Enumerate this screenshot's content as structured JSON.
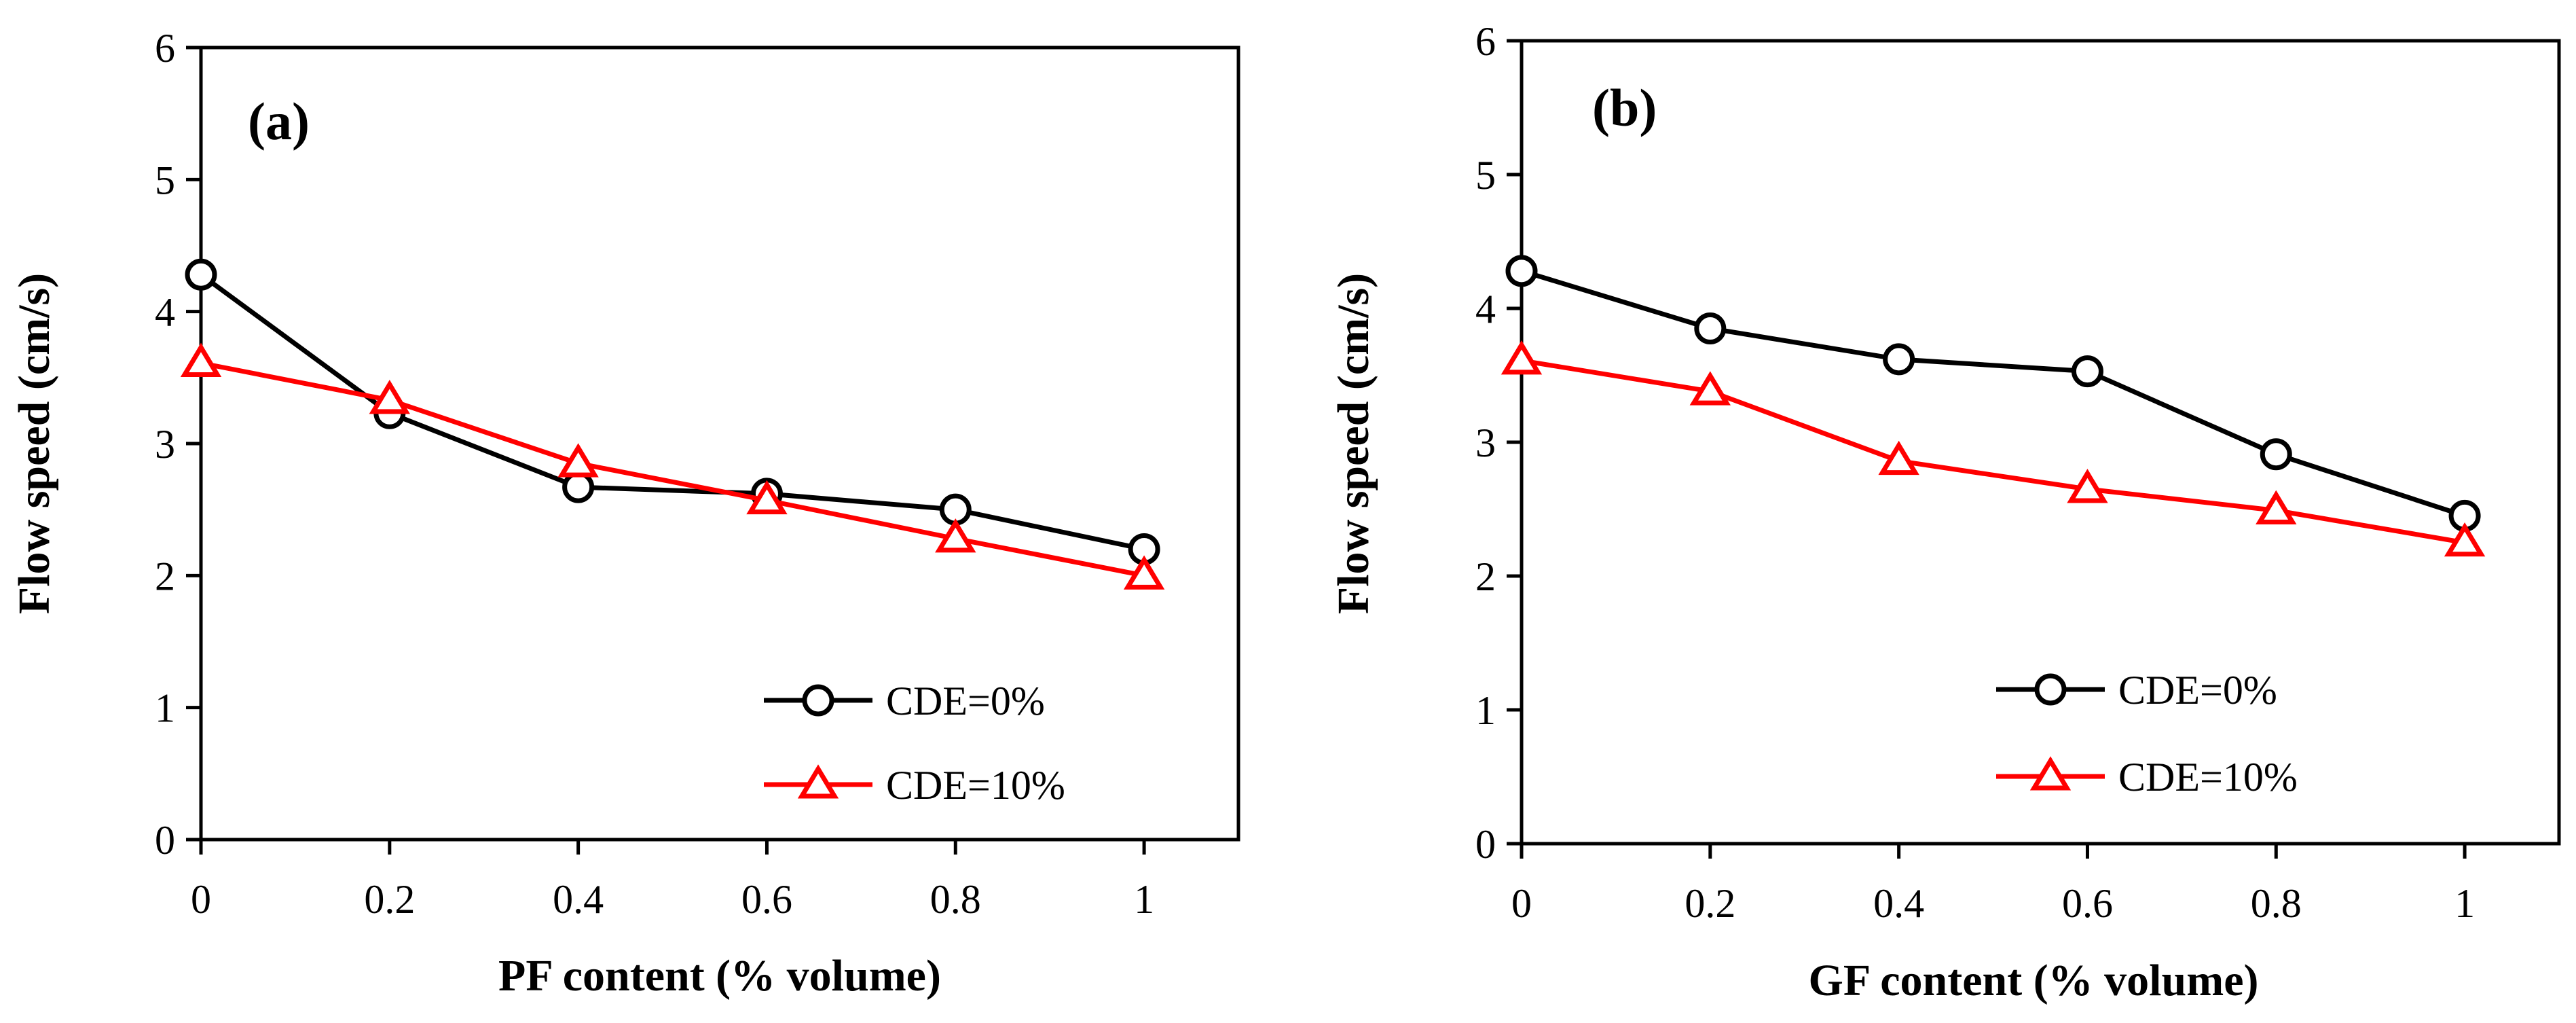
{
  "chart_data": [
    {
      "type": "line",
      "panel_label": "(a)",
      "xlabel": "PF content (% volume)",
      "ylabel": "Flow speed (cm/s)",
      "xlim": [
        0,
        1.1
      ],
      "ylim": [
        0,
        6
      ],
      "x": [
        0,
        0.2,
        0.4,
        0.6,
        0.8,
        1
      ],
      "x_tick_labels": [
        "0",
        "0.2",
        "0.4",
        "0.6",
        "0.8",
        "1"
      ],
      "y_tick_labels": [
        "0",
        "1",
        "2",
        "3",
        "4",
        "5",
        "6"
      ],
      "legend_position": "bottom-right",
      "series": [
        {
          "name": "CDE=0%",
          "marker": "circle",
          "color": "#000000",
          "values": [
            4.28,
            3.23,
            2.67,
            2.62,
            2.5,
            2.2
          ]
        },
        {
          "name": "CDE=10%",
          "marker": "triangle",
          "color": "#ff0000",
          "values": [
            3.61,
            3.33,
            2.85,
            2.57,
            2.28,
            2.0
          ]
        }
      ]
    },
    {
      "type": "line",
      "panel_label": "(b)",
      "xlabel": "GF content (% volume)",
      "ylabel": "Flow speed (cm/s)",
      "xlim": [
        0,
        1.1
      ],
      "ylim": [
        0,
        6
      ],
      "x": [
        0,
        0.2,
        0.4,
        0.6,
        0.8,
        1
      ],
      "x_tick_labels": [
        "0",
        "0.2",
        "0.4",
        "0.6",
        "0.8",
        "1"
      ],
      "y_tick_labels": [
        "0",
        "1",
        "2",
        "3",
        "4",
        "5",
        "6"
      ],
      "legend_position": "bottom-right",
      "series": [
        {
          "name": "CDE=0%",
          "marker": "circle",
          "color": "#000000",
          "values": [
            4.28,
            3.85,
            3.62,
            3.53,
            2.91,
            2.45
          ]
        },
        {
          "name": "CDE=10%",
          "marker": "triangle",
          "color": "#ff0000",
          "values": [
            3.61,
            3.38,
            2.86,
            2.65,
            2.49,
            2.25
          ]
        }
      ]
    }
  ]
}
